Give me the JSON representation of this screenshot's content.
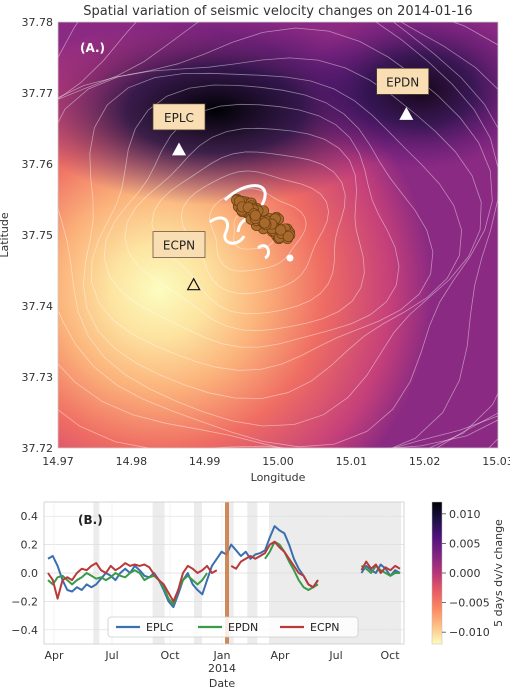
{
  "chart_data": [
    {
      "type": "heatmap",
      "panel_label": "(A.)",
      "title": "Spatial variation of seismic velocity changes on 2014-01-16",
      "xlabel": "Longitude",
      "ylabel": "Latitude",
      "xlim": [
        14.97,
        15.03
      ],
      "ylim": [
        37.72,
        37.78
      ],
      "xticks": [
        "14.97",
        "14.98",
        "14.99",
        "15.00",
        "15.01",
        "15.02",
        "15.03"
      ],
      "yticks": [
        "37.72",
        "37.73",
        "37.74",
        "37.75",
        "37.76",
        "37.77",
        "37.78"
      ],
      "stations": [
        {
          "name": "EPLC",
          "lon": 14.9865,
          "lat": 37.762,
          "label_lon": 14.9865,
          "label_lat": 37.7665,
          "filled": true
        },
        {
          "name": "EPDN",
          "lon": 15.0175,
          "lat": 37.767,
          "label_lon": 15.017,
          "label_lat": 37.7715,
          "filled": true
        },
        {
          "name": "ECPN",
          "lon": 14.9885,
          "lat": 37.743,
          "label_lon": 14.9865,
          "label_lat": 37.7485,
          "filled": false
        }
      ],
      "colorbar": {
        "label": "5 days dv/v change",
        "range": [
          -0.012,
          0.012
        ],
        "ticks": [
          "0.010",
          "0.005",
          "0.000",
          "−0.005",
          "−0.010"
        ],
        "tick_values": [
          0.01,
          0.005,
          0.0,
          -0.005,
          -0.01
        ]
      },
      "colormap": [
        "#fcfdbf",
        "#fec287",
        "#fb8861",
        "#e55964",
        "#b63679",
        "#822681",
        "#51127c",
        "#1c1044",
        "#000004"
      ]
    },
    {
      "type": "line",
      "panel_label": "(B.)",
      "xlabel": "Date",
      "ylim": [
        -0.5,
        0.5
      ],
      "xticks": [
        "Apr",
        "Jul",
        "Oct",
        "Jan",
        "Apr",
        "Jul",
        "Oct"
      ],
      "xtick_year": "2014",
      "yticks": [
        "0.4",
        "0.2",
        "0.0",
        "−0.2",
        "−0.4"
      ],
      "ytick_values": [
        0.4,
        0.2,
        0.0,
        -0.2,
        -0.4
      ],
      "marker_date": "2014-01-16",
      "series": [
        {
          "name": "EPLC",
          "color": "#3a6fb0",
          "values": [
            0.1,
            0.12,
            0.05,
            -0.05,
            -0.12,
            -0.13,
            -0.1,
            -0.12,
            -0.08,
            -0.1,
            -0.08,
            -0.04,
            0.0,
            -0.02,
            -0.05,
            0.0,
            0.03,
            0.0,
            0.05,
            0.02,
            -0.02,
            -0.03,
            0.0,
            -0.05,
            -0.12,
            -0.2,
            -0.24,
            -0.15,
            -0.05,
            0.0,
            -0.08,
            -0.12,
            -0.15,
            -0.05,
            0.05,
            0.1,
            0.15,
            0.13,
            0.2,
            0.16,
            0.12,
            0.15,
            0.1,
            0.13,
            0.14,
            0.16,
            0.25,
            0.33,
            0.3,
            0.28,
            0.2,
            0.1,
            0.03,
            -0.02,
            -0.08,
            -0.1,
            -0.05,
            null,
            null,
            null,
            null,
            -0.02,
            null,
            null,
            null,
            0.0,
            0.05,
            0.02,
            0.0,
            0.06,
            0.03,
            -0.02,
            0.02,
            0.0
          ]
        },
        {
          "name": "EPDN",
          "color": "#3a9a4a",
          "values": [
            -0.05,
            -0.08,
            -0.03,
            -0.02,
            -0.05,
            -0.08,
            -0.05,
            -0.03,
            0.0,
            -0.02,
            -0.04,
            -0.03,
            -0.05,
            -0.03,
            0.0,
            -0.02,
            -0.03,
            0.0,
            0.02,
            0.0,
            -0.05,
            -0.03,
            -0.02,
            -0.05,
            -0.1,
            -0.18,
            -0.22,
            -0.12,
            -0.05,
            -0.02,
            -0.05,
            -0.08,
            -0.05,
            0.0,
            null,
            null,
            null,
            null,
            null,
            null,
            null,
            null,
            null,
            -0.04,
            null,
            0.1,
            0.15,
            0.22,
            0.2,
            0.15,
            0.08,
            0.02,
            -0.05,
            -0.1,
            -0.12,
            -0.1,
            -0.08,
            null,
            null,
            null,
            null,
            null,
            null,
            null,
            null,
            0.05,
            0.03,
            0.0,
            0.05,
            0.02,
            0.0,
            -0.02,
            0.0,
            0.0
          ]
        },
        {
          "name": "ECPN",
          "color": "#b83a3a",
          "values": [
            0.0,
            -0.05,
            -0.18,
            -0.05,
            -0.03,
            -0.05,
            0.0,
            0.03,
            0.02,
            0.05,
            0.07,
            0.02,
            0.0,
            0.05,
            0.02,
            0.04,
            0.07,
            0.05,
            0.06,
            0.05,
            0.06,
            0.04,
            -0.01,
            -0.05,
            -0.08,
            -0.14,
            -0.2,
            -0.12,
            0.0,
            0.05,
            0.03,
            0.0,
            0.02,
            0.05,
            0.0,
            0.02,
            null,
            null,
            0.05,
            0.03,
            0.08,
            0.1,
            0.12,
            0.1,
            0.12,
            0.14,
            0.2,
            0.22,
            0.18,
            0.15,
            0.1,
            0.05,
            0.0,
            -0.02,
            -0.08,
            -0.1,
            -0.05,
            null,
            null,
            null,
            null,
            null,
            null,
            null,
            null,
            0.02,
            0.08,
            0.03,
            0.06,
            0.0,
            0.04,
            0.02,
            0.05,
            0.03
          ]
        }
      ]
    }
  ]
}
